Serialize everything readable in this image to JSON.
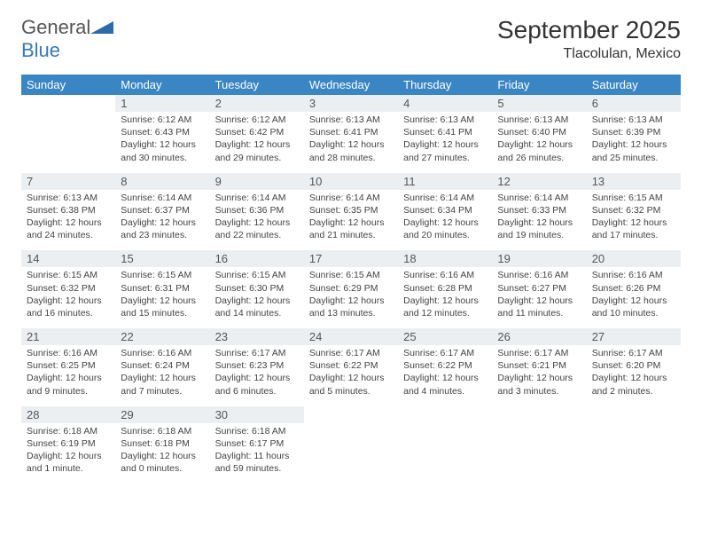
{
  "logo": {
    "text1": "General",
    "text2": "Blue"
  },
  "title": "September 2025",
  "location": "Tlacolulan, Mexico",
  "colors": {
    "header_bg": "#3a85c4",
    "header_fg": "#ffffff",
    "daynum_bg": "#eceff1",
    "rule": "#1c4d7a",
    "logo_blue": "#3a7ab8"
  },
  "dow": [
    "Sunday",
    "Monday",
    "Tuesday",
    "Wednesday",
    "Thursday",
    "Friday",
    "Saturday"
  ],
  "weeks": [
    [
      null,
      {
        "n": "1",
        "sr": "Sunrise: 6:12 AM",
        "ss": "Sunset: 6:43 PM",
        "d1": "Daylight: 12 hours",
        "d2": "and 30 minutes."
      },
      {
        "n": "2",
        "sr": "Sunrise: 6:12 AM",
        "ss": "Sunset: 6:42 PM",
        "d1": "Daylight: 12 hours",
        "d2": "and 29 minutes."
      },
      {
        "n": "3",
        "sr": "Sunrise: 6:13 AM",
        "ss": "Sunset: 6:41 PM",
        "d1": "Daylight: 12 hours",
        "d2": "and 28 minutes."
      },
      {
        "n": "4",
        "sr": "Sunrise: 6:13 AM",
        "ss": "Sunset: 6:41 PM",
        "d1": "Daylight: 12 hours",
        "d2": "and 27 minutes."
      },
      {
        "n": "5",
        "sr": "Sunrise: 6:13 AM",
        "ss": "Sunset: 6:40 PM",
        "d1": "Daylight: 12 hours",
        "d2": "and 26 minutes."
      },
      {
        "n": "6",
        "sr": "Sunrise: 6:13 AM",
        "ss": "Sunset: 6:39 PM",
        "d1": "Daylight: 12 hours",
        "d2": "and 25 minutes."
      }
    ],
    [
      {
        "n": "7",
        "sr": "Sunrise: 6:13 AM",
        "ss": "Sunset: 6:38 PM",
        "d1": "Daylight: 12 hours",
        "d2": "and 24 minutes."
      },
      {
        "n": "8",
        "sr": "Sunrise: 6:14 AM",
        "ss": "Sunset: 6:37 PM",
        "d1": "Daylight: 12 hours",
        "d2": "and 23 minutes."
      },
      {
        "n": "9",
        "sr": "Sunrise: 6:14 AM",
        "ss": "Sunset: 6:36 PM",
        "d1": "Daylight: 12 hours",
        "d2": "and 22 minutes."
      },
      {
        "n": "10",
        "sr": "Sunrise: 6:14 AM",
        "ss": "Sunset: 6:35 PM",
        "d1": "Daylight: 12 hours",
        "d2": "and 21 minutes."
      },
      {
        "n": "11",
        "sr": "Sunrise: 6:14 AM",
        "ss": "Sunset: 6:34 PM",
        "d1": "Daylight: 12 hours",
        "d2": "and 20 minutes."
      },
      {
        "n": "12",
        "sr": "Sunrise: 6:14 AM",
        "ss": "Sunset: 6:33 PM",
        "d1": "Daylight: 12 hours",
        "d2": "and 19 minutes."
      },
      {
        "n": "13",
        "sr": "Sunrise: 6:15 AM",
        "ss": "Sunset: 6:32 PM",
        "d1": "Daylight: 12 hours",
        "d2": "and 17 minutes."
      }
    ],
    [
      {
        "n": "14",
        "sr": "Sunrise: 6:15 AM",
        "ss": "Sunset: 6:32 PM",
        "d1": "Daylight: 12 hours",
        "d2": "and 16 minutes."
      },
      {
        "n": "15",
        "sr": "Sunrise: 6:15 AM",
        "ss": "Sunset: 6:31 PM",
        "d1": "Daylight: 12 hours",
        "d2": "and 15 minutes."
      },
      {
        "n": "16",
        "sr": "Sunrise: 6:15 AM",
        "ss": "Sunset: 6:30 PM",
        "d1": "Daylight: 12 hours",
        "d2": "and 14 minutes."
      },
      {
        "n": "17",
        "sr": "Sunrise: 6:15 AM",
        "ss": "Sunset: 6:29 PM",
        "d1": "Daylight: 12 hours",
        "d2": "and 13 minutes."
      },
      {
        "n": "18",
        "sr": "Sunrise: 6:16 AM",
        "ss": "Sunset: 6:28 PM",
        "d1": "Daylight: 12 hours",
        "d2": "and 12 minutes."
      },
      {
        "n": "19",
        "sr": "Sunrise: 6:16 AM",
        "ss": "Sunset: 6:27 PM",
        "d1": "Daylight: 12 hours",
        "d2": "and 11 minutes."
      },
      {
        "n": "20",
        "sr": "Sunrise: 6:16 AM",
        "ss": "Sunset: 6:26 PM",
        "d1": "Daylight: 12 hours",
        "d2": "and 10 minutes."
      }
    ],
    [
      {
        "n": "21",
        "sr": "Sunrise: 6:16 AM",
        "ss": "Sunset: 6:25 PM",
        "d1": "Daylight: 12 hours",
        "d2": "and 9 minutes."
      },
      {
        "n": "22",
        "sr": "Sunrise: 6:16 AM",
        "ss": "Sunset: 6:24 PM",
        "d1": "Daylight: 12 hours",
        "d2": "and 7 minutes."
      },
      {
        "n": "23",
        "sr": "Sunrise: 6:17 AM",
        "ss": "Sunset: 6:23 PM",
        "d1": "Daylight: 12 hours",
        "d2": "and 6 minutes."
      },
      {
        "n": "24",
        "sr": "Sunrise: 6:17 AM",
        "ss": "Sunset: 6:22 PM",
        "d1": "Daylight: 12 hours",
        "d2": "and 5 minutes."
      },
      {
        "n": "25",
        "sr": "Sunrise: 6:17 AM",
        "ss": "Sunset: 6:22 PM",
        "d1": "Daylight: 12 hours",
        "d2": "and 4 minutes."
      },
      {
        "n": "26",
        "sr": "Sunrise: 6:17 AM",
        "ss": "Sunset: 6:21 PM",
        "d1": "Daylight: 12 hours",
        "d2": "and 3 minutes."
      },
      {
        "n": "27",
        "sr": "Sunrise: 6:17 AM",
        "ss": "Sunset: 6:20 PM",
        "d1": "Daylight: 12 hours",
        "d2": "and 2 minutes."
      }
    ],
    [
      {
        "n": "28",
        "sr": "Sunrise: 6:18 AM",
        "ss": "Sunset: 6:19 PM",
        "d1": "Daylight: 12 hours",
        "d2": "and 1 minute."
      },
      {
        "n": "29",
        "sr": "Sunrise: 6:18 AM",
        "ss": "Sunset: 6:18 PM",
        "d1": "Daylight: 12 hours",
        "d2": "and 0 minutes."
      },
      {
        "n": "30",
        "sr": "Sunrise: 6:18 AM",
        "ss": "Sunset: 6:17 PM",
        "d1": "Daylight: 11 hours",
        "d2": "and 59 minutes."
      },
      null,
      null,
      null,
      null
    ]
  ]
}
